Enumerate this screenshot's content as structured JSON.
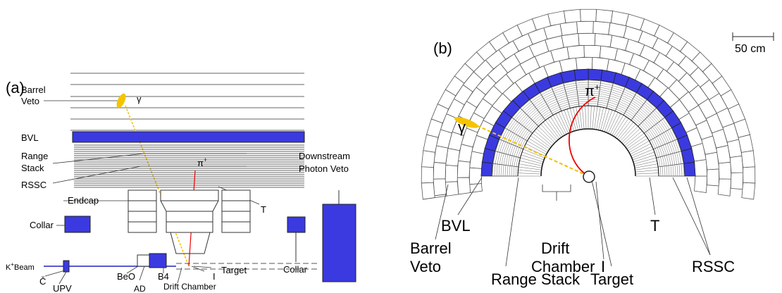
{
  "panel_a": {
    "tag": "(a)",
    "barrel_veto": [
      "Barrel",
      "Veto"
    ],
    "gamma": "γ",
    "bvl": "BVL",
    "range_stack": [
      "Range",
      "Stack"
    ],
    "rssc": "RSSC",
    "pi": "π",
    "pi_charge": "+",
    "downstream_photon_veto": [
      "Downstream",
      "Photon Veto"
    ],
    "endcap": "Endcap",
    "t": "T",
    "collar_left": "Collar",
    "collar_right": "Collar",
    "kaon": "K",
    "kaon_charge": "+",
    "beam": "Beam",
    "cerenkov": "Č",
    "upv": "UPV",
    "beo": "BeO",
    "b4": "B4",
    "ad": "AD",
    "drift_chamber": "Drift Chamber",
    "i": "I",
    "target": "Target"
  },
  "panel_b": {
    "tag": "(b)",
    "scale": "50 cm",
    "gamma": "γ",
    "pi": "π",
    "pi_charge": "+",
    "bvl": "BVL",
    "barrel_veto": [
      "Barrel",
      "Veto"
    ],
    "range_stack": "Range Stack",
    "drift_chamber": [
      "Drift",
      "Chamber"
    ],
    "target": "Target",
    "i": "I",
    "t": "T",
    "rssc": "RSSC"
  }
}
